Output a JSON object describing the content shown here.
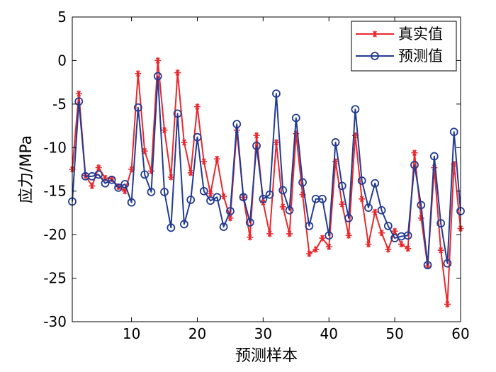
{
  "chart_data": {
    "type": "line",
    "xlabel": "预测样本",
    "ylabel": "应力/MPa",
    "xlim": [
      1,
      60
    ],
    "ylim": [
      -30,
      5
    ],
    "xticks": [
      10,
      20,
      30,
      40,
      50,
      60
    ],
    "yticks": [
      5,
      0,
      -5,
      -10,
      -15,
      -20,
      -25,
      -30
    ],
    "legend_position": "top-right",
    "series": [
      {
        "name": "真实值",
        "color": "#e8282d",
        "marker": "asterisk",
        "x": [
          1,
          2,
          3,
          4,
          5,
          6,
          7,
          8,
          9,
          10,
          11,
          12,
          13,
          14,
          15,
          16,
          17,
          18,
          19,
          20,
          21,
          22,
          23,
          24,
          25,
          26,
          27,
          28,
          29,
          30,
          31,
          32,
          33,
          34,
          35,
          36,
          37,
          38,
          39,
          40,
          41,
          42,
          43,
          44,
          45,
          46,
          47,
          48,
          49,
          50,
          51,
          52,
          53,
          54,
          55,
          56,
          57,
          58,
          59,
          60
        ],
        "values": [
          -12.5,
          -3.8,
          -13.2,
          -14.4,
          -12.3,
          -13.5,
          -13.6,
          -14.5,
          -15.0,
          -12.5,
          -1.5,
          -10.4,
          -12.7,
          0.0,
          -8.0,
          -13.4,
          -1.4,
          -9.4,
          -12.9,
          -5.3,
          -11.6,
          -15.3,
          -11.3,
          -15.6,
          -18.1,
          -8.0,
          -15.7,
          -20.3,
          -8.6,
          -16.3,
          -19.9,
          -9.4,
          -16.8,
          -19.9,
          -8.4,
          -15.4,
          -22.2,
          -21.7,
          -20.4,
          -21.4,
          -11.6,
          -16.5,
          -20.1,
          -8.6,
          -15.9,
          -21.1,
          -17.4,
          -19.8,
          -21.7,
          -19.6,
          -21.1,
          -21.6,
          -10.6,
          -18.1,
          -23.6,
          -12.3,
          -21.8,
          -28.0,
          -11.9,
          -19.3
        ]
      },
      {
        "name": "预测值",
        "color": "#233b92",
        "marker": "circle",
        "x": [
          1,
          2,
          3,
          4,
          5,
          6,
          7,
          8,
          9,
          10,
          11,
          12,
          13,
          14,
          15,
          16,
          17,
          18,
          19,
          20,
          21,
          22,
          23,
          24,
          25,
          26,
          27,
          28,
          29,
          30,
          31,
          32,
          33,
          34,
          35,
          36,
          37,
          38,
          39,
          40,
          41,
          42,
          43,
          44,
          45,
          46,
          47,
          48,
          49,
          50,
          51,
          52,
          53,
          54,
          55,
          56,
          57,
          58,
          59,
          60
        ],
        "values": [
          -16.2,
          -4.7,
          -13.3,
          -13.3,
          -13.1,
          -14.1,
          -13.7,
          -14.6,
          -14.2,
          -16.3,
          -5.4,
          -13.1,
          -15.1,
          -1.8,
          -15.1,
          -19.2,
          -6.1,
          -18.8,
          -16.0,
          -8.8,
          -15.0,
          -16.1,
          -15.7,
          -19.1,
          -17.3,
          -7.3,
          -15.7,
          -18.6,
          -9.8,
          -15.9,
          -15.4,
          -3.8,
          -14.9,
          -17.2,
          -6.6,
          -14.0,
          -19.0,
          -15.9,
          -15.9,
          -20.1,
          -9.4,
          -14.4,
          -18.1,
          -5.6,
          -13.8,
          -16.9,
          -14.1,
          -17.2,
          -19.0,
          -20.4,
          -20.2,
          -20.1,
          -12.0,
          -16.6,
          -23.5,
          -11.0,
          -18.7,
          -23.3,
          -8.2,
          -17.3
        ]
      }
    ]
  }
}
